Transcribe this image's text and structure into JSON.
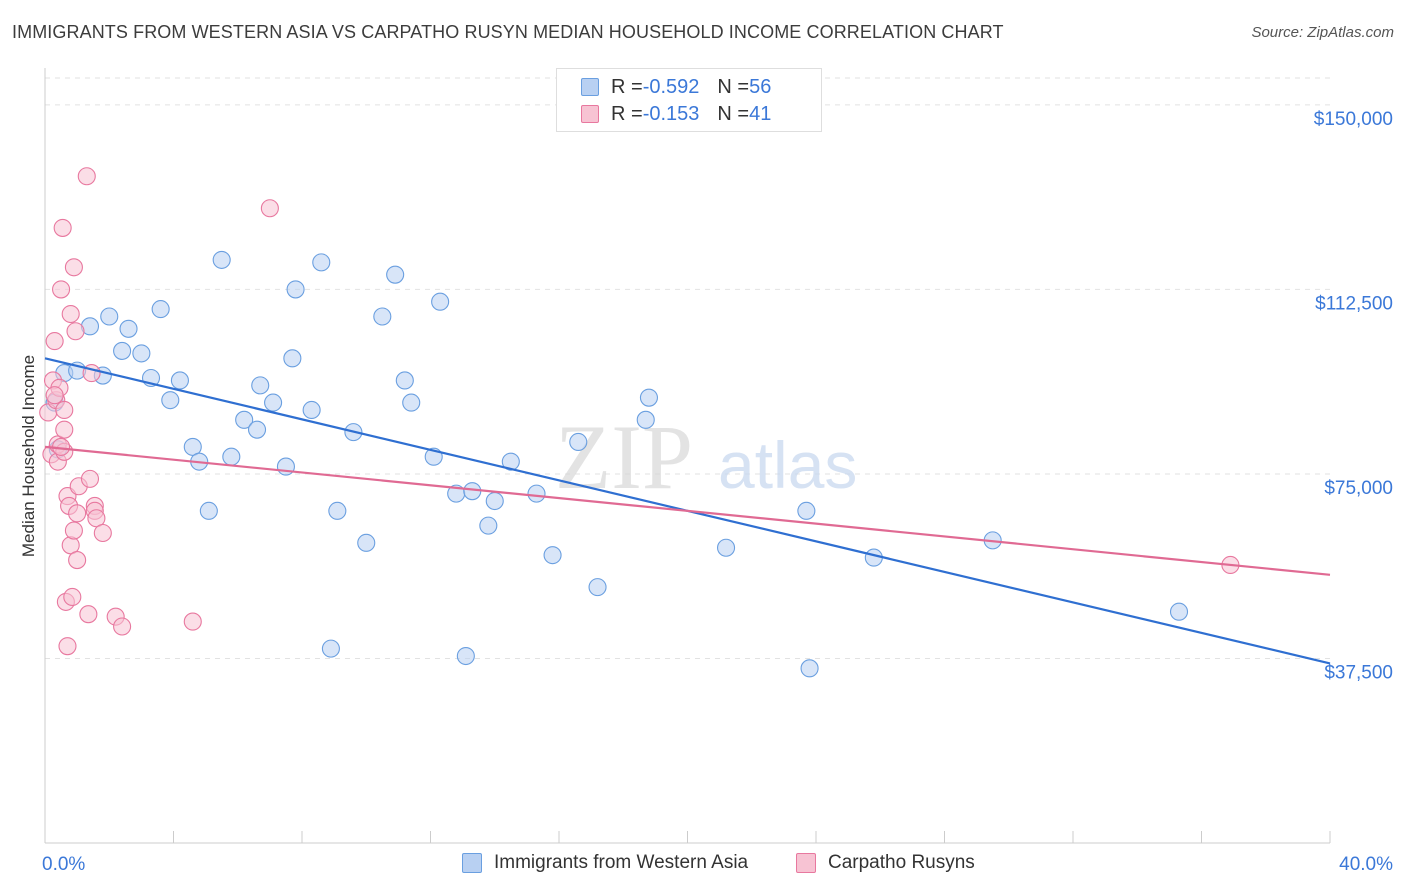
{
  "header": {
    "title": "IMMIGRANTS FROM WESTERN ASIA VS CARPATHO RUSYN MEDIAN HOUSEHOLD INCOME CORRELATION CHART",
    "source": "Source: ZipAtlas.com"
  },
  "watermark": {
    "zip": "ZIP",
    "atlas": "atlas"
  },
  "legend": {
    "rows": [
      {
        "r_label": "R = ",
        "r_value": "-0.592",
        "n_label": "N = ",
        "n_value": "56"
      },
      {
        "r_label": "R = ",
        "r_value": "-0.153",
        "n_label": "N = ",
        "n_value": "41"
      }
    ]
  },
  "chart_data": {
    "type": "scatter",
    "title": "IMMIGRANTS FROM WESTERN ASIA VS CARPATHO RUSYN MEDIAN HOUSEHOLD INCOME CORRELATION CHART",
    "xlabel": "",
    "ylabel": "Median Household Income",
    "xlim": [
      0,
      40
    ],
    "ylim": [
      0,
      157500
    ],
    "x_tick_labels": [
      "0.0%",
      "40.0%"
    ],
    "y_ticks": [
      37500,
      75000,
      112500,
      150000
    ],
    "y_tick_labels": [
      "$37,500",
      "$75,000",
      "$112,500",
      "$150,000"
    ],
    "grid": true,
    "legend_position": "top-center",
    "series": [
      {
        "name": "Immigrants from Western Asia",
        "color": "#6a9fe0",
        "fill": "#b8d0f2",
        "r": -0.592,
        "n": 56,
        "trend": [
          [
            0,
            98500
          ],
          [
            40,
            36500
          ]
        ],
        "points": [
          [
            0.3,
            89500
          ],
          [
            0.6,
            95500
          ],
          [
            1.0,
            96000
          ],
          [
            1.4,
            105000
          ],
          [
            1.8,
            95000
          ],
          [
            2.0,
            107000
          ],
          [
            2.4,
            100000
          ],
          [
            2.6,
            104500
          ],
          [
            3.0,
            99500
          ],
          [
            3.3,
            94500
          ],
          [
            3.6,
            108500
          ],
          [
            3.9,
            90000
          ],
          [
            4.2,
            94000
          ],
          [
            4.6,
            80500
          ],
          [
            4.8,
            77500
          ],
          [
            5.1,
            67500
          ],
          [
            5.5,
            118500
          ],
          [
            5.8,
            78500
          ],
          [
            6.2,
            86000
          ],
          [
            6.6,
            84000
          ],
          [
            6.7,
            93000
          ],
          [
            7.1,
            89500
          ],
          [
            7.5,
            76500
          ],
          [
            7.7,
            98500
          ],
          [
            7.8,
            112500
          ],
          [
            8.3,
            88000
          ],
          [
            8.6,
            118000
          ],
          [
            8.9,
            39500
          ],
          [
            9.1,
            67500
          ],
          [
            9.6,
            83500
          ],
          [
            10.0,
            61000
          ],
          [
            10.5,
            107000
          ],
          [
            10.9,
            115500
          ],
          [
            11.2,
            94000
          ],
          [
            11.4,
            89500
          ],
          [
            12.1,
            78500
          ],
          [
            12.3,
            110000
          ],
          [
            12.8,
            71000
          ],
          [
            13.1,
            38000
          ],
          [
            13.3,
            71500
          ],
          [
            13.8,
            64500
          ],
          [
            14.0,
            69500
          ],
          [
            14.5,
            77500
          ],
          [
            15.3,
            71000
          ],
          [
            15.8,
            58500
          ],
          [
            16.6,
            81500
          ],
          [
            17.2,
            52000
          ],
          [
            18.7,
            86000
          ],
          [
            18.8,
            90500
          ],
          [
            21.2,
            60000
          ],
          [
            23.7,
            67500
          ],
          [
            23.8,
            35500
          ],
          [
            25.8,
            58000
          ],
          [
            29.5,
            61500
          ],
          [
            35.3,
            47000
          ],
          [
            0.4,
            80000
          ]
        ]
      },
      {
        "name": "Carpatho Rusyns",
        "color": "#e8789f",
        "fill": "#f7c3d3",
        "r": -0.153,
        "n": 41,
        "trend": [
          [
            0,
            80500
          ],
          [
            40,
            54500
          ]
        ],
        "points": [
          [
            0.1,
            87500
          ],
          [
            0.2,
            79000
          ],
          [
            0.25,
            94000
          ],
          [
            0.3,
            102000
          ],
          [
            0.35,
            90000
          ],
          [
            0.4,
            81000
          ],
          [
            0.4,
            77500
          ],
          [
            0.45,
            92500
          ],
          [
            0.5,
            112500
          ],
          [
            0.55,
            125000
          ],
          [
            0.6,
            79500
          ],
          [
            0.6,
            84000
          ],
          [
            0.6,
            88000
          ],
          [
            0.65,
            49000
          ],
          [
            0.7,
            70500
          ],
          [
            0.7,
            40000
          ],
          [
            0.75,
            68500
          ],
          [
            0.8,
            60500
          ],
          [
            0.8,
            107500
          ],
          [
            0.85,
            50000
          ],
          [
            0.9,
            117000
          ],
          [
            0.9,
            63500
          ],
          [
            0.95,
            104000
          ],
          [
            1.0,
            57500
          ],
          [
            1.05,
            72500
          ],
          [
            1.3,
            135500
          ],
          [
            1.35,
            46500
          ],
          [
            1.4,
            74000
          ],
          [
            1.45,
            95500
          ],
          [
            1.55,
            68500
          ],
          [
            1.55,
            67500
          ],
          [
            1.6,
            66000
          ],
          [
            1.8,
            63000
          ],
          [
            2.2,
            46000
          ],
          [
            2.4,
            44000
          ],
          [
            4.6,
            45000
          ],
          [
            7.0,
            129000
          ],
          [
            36.9,
            56500
          ],
          [
            0.3,
            91000
          ],
          [
            0.5,
            80500
          ],
          [
            1.0,
            67000
          ]
        ]
      }
    ]
  }
}
